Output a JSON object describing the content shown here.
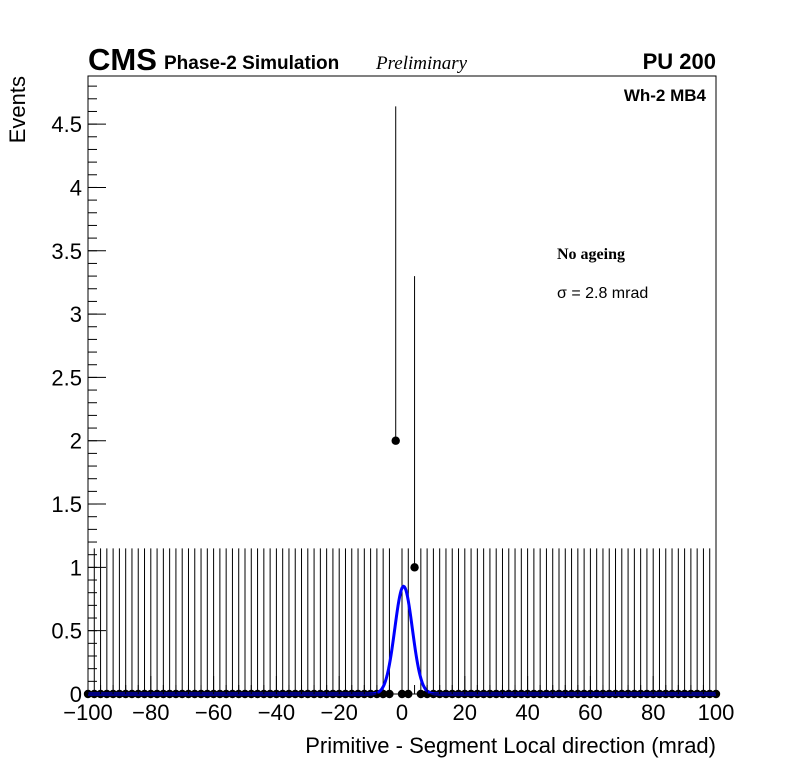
{
  "chart_data": {
    "type": "scatter",
    "title": "",
    "xlabel": "Primitive - Segment Local direction (mrad)",
    "ylabel": "Events",
    "xlim": [
      -100,
      100
    ],
    "ylim": [
      0,
      4.88
    ],
    "x_ticks": [
      -100,
      -80,
      -60,
      -40,
      -20,
      0,
      20,
      40,
      60,
      80,
      100
    ],
    "x_tick_labels": [
      "−100",
      "−80",
      "−60",
      "−40",
      "−20",
      "0",
      "20",
      "40",
      "60",
      "80",
      "100"
    ],
    "y_ticks": [
      0,
      0.5,
      1,
      1.5,
      2,
      2.5,
      3,
      3.5,
      4,
      4.5
    ],
    "y_tick_labels": [
      "0",
      "0.5",
      "1",
      "1.5",
      "2",
      "2.5",
      "3",
      "3.5",
      "4",
      "4.5"
    ],
    "bins": {
      "start": -100,
      "step": 2,
      "count": 101
    },
    "nonzero_points": [
      {
        "x": -2,
        "y": 2,
        "err_up": 4.64
      },
      {
        "x": 4,
        "y": 1,
        "err_up": 3.3
      }
    ],
    "zero_err_up": 1.15,
    "fit": {
      "type": "gaussian",
      "amplitude": 0.85,
      "mean": 0.5,
      "sigma": 2.8,
      "range": [
        -8,
        8
      ],
      "color": "#0000ff"
    },
    "grid": false
  },
  "labels": {
    "cms": "CMS",
    "phase": "Phase-2 Simulation",
    "prelim": "Preliminary",
    "pu": "PU 200",
    "station": "Wh-2 MB4",
    "ageing": "No ageing",
    "sigma": "σ = 2.8 mrad"
  }
}
